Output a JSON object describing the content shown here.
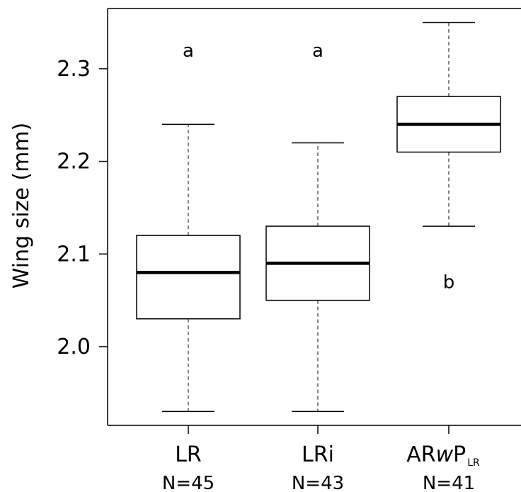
{
  "chart_data": {
    "type": "box",
    "title": "",
    "ylabel": "Wing size (mm)",
    "xlabel": "",
    "ylim": [
      1.915,
      2.365
    ],
    "yticks": [
      2.0,
      2.1,
      2.2,
      2.3
    ],
    "ytick_labels": [
      "2.0",
      "2.1",
      "2.2",
      "2.3"
    ],
    "grid": false,
    "groups": [
      {
        "label": "LR",
        "label_sub": "",
        "n_label": "N=45",
        "letter": "a",
        "letter_y": 2.32,
        "whisker_low": 1.93,
        "q1": 2.03,
        "median": 2.08,
        "q3": 2.12,
        "whisker_high": 2.24
      },
      {
        "label": "LRi",
        "label_sub": "",
        "n_label": "N=43",
        "letter": "a",
        "letter_y": 2.32,
        "whisker_low": 1.93,
        "q1": 2.05,
        "median": 2.09,
        "q3": 2.13,
        "whisker_high": 2.22
      },
      {
        "label": "ARwP",
        "label_parts": [
          "AR",
          "w",
          "P"
        ],
        "label_sub": "LR",
        "n_label": "N=41",
        "letter": "b",
        "letter_y": 2.07,
        "whisker_low": 2.13,
        "q1": 2.21,
        "median": 2.24,
        "q3": 2.27,
        "whisker_high": 2.35
      }
    ]
  }
}
